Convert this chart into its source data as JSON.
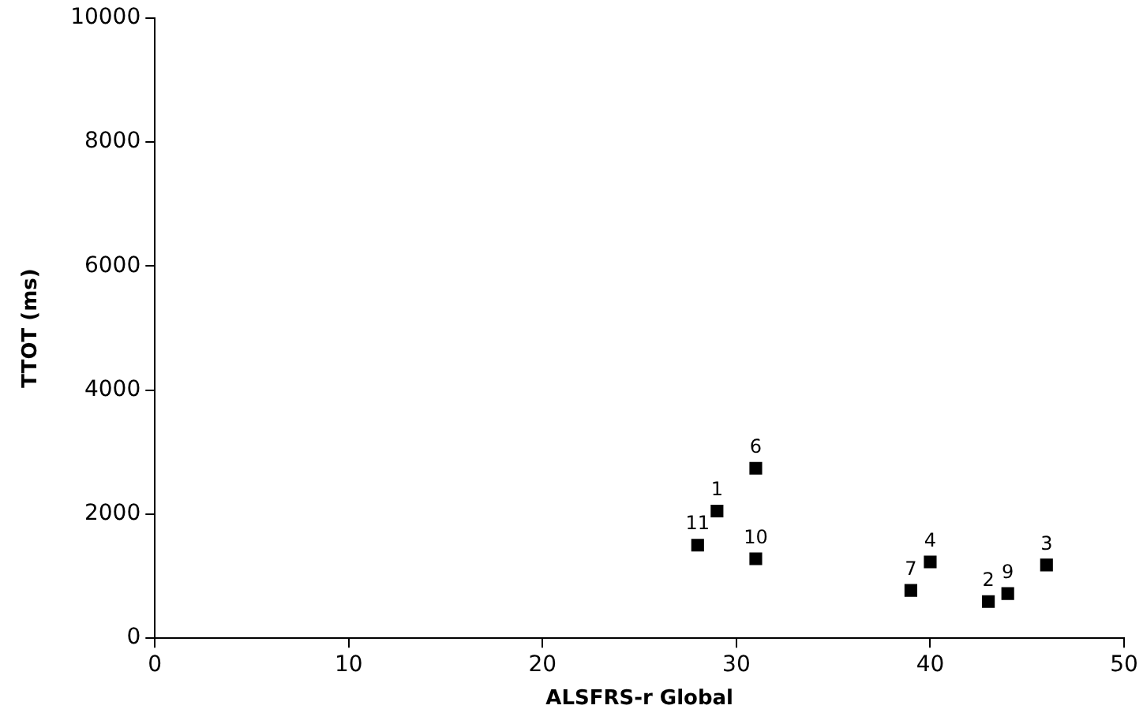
{
  "chart_data": {
    "type": "scatter",
    "xlabel": "ALSFRS-r Global",
    "ylabel": "TTOT (ms)",
    "x": [
      29,
      43,
      46,
      40,
      31,
      39,
      44,
      31,
      28
    ],
    "values": [
      2050,
      590,
      1180,
      1230,
      2740,
      770,
      720,
      1280,
      1500
    ],
    "annotations": [
      {
        "text": "1",
        "x": 29,
        "y": 2050
      },
      {
        "text": "2",
        "x": 43,
        "y": 590
      },
      {
        "text": "3",
        "x": 46,
        "y": 1180
      },
      {
        "text": "4",
        "x": 40,
        "y": 1230
      },
      {
        "text": "6",
        "x": 31,
        "y": 2740
      },
      {
        "text": "7",
        "x": 39,
        "y": 770
      },
      {
        "text": "9",
        "x": 44,
        "y": 720
      },
      {
        "text": "10",
        "x": 31,
        "y": 1280
      },
      {
        "text": "11",
        "x": 28,
        "y": 1500
      }
    ],
    "color": "#000000",
    "marker": "square",
    "xlim": [
      0,
      50
    ],
    "xticks": [
      0,
      10,
      20,
      30,
      40,
      50
    ],
    "ylim": [
      0,
      10000
    ],
    "yticks": [
      0,
      2000,
      4000,
      6000,
      8000,
      10000
    ],
    "grid": false,
    "legend": false
  }
}
